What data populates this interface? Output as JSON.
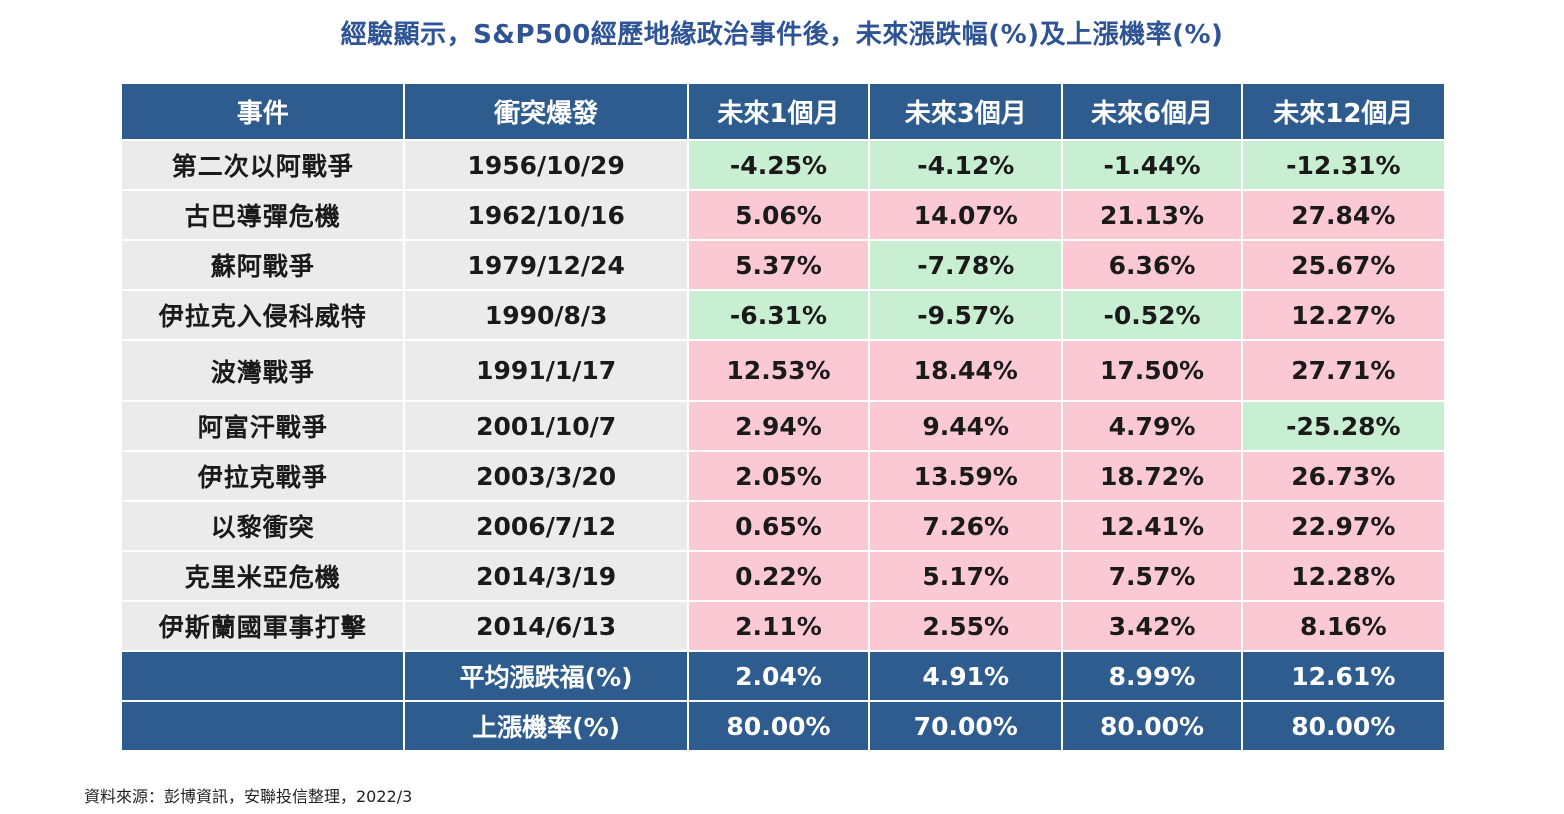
{
  "title": "經驗顯示，S&P500經歷地緣政治事件後，未來漲跌幅(%)及上漲機率(%)",
  "table": {
    "headers": [
      "事件",
      "衝突爆發",
      "未來1個月",
      "未來3個月",
      "未來6個月",
      "未來12個月"
    ],
    "rows": [
      {
        "event": "第二次以阿戰爭",
        "date": "1956/10/29",
        "values": [
          "-4.25%",
          "-4.12%",
          "-1.44%",
          "-12.31%"
        ]
      },
      {
        "event": "古巴導彈危機",
        "date": "1962/10/16",
        "values": [
          "5.06%",
          "14.07%",
          "21.13%",
          "27.84%"
        ]
      },
      {
        "event": "蘇阿戰爭",
        "date": "1979/12/24",
        "values": [
          "5.37%",
          "-7.78%",
          "6.36%",
          "25.67%"
        ]
      },
      {
        "event": "伊拉克入侵科威特",
        "date": "1990/8/3",
        "values": [
          "-6.31%",
          "-9.57%",
          "-0.52%",
          "12.27%"
        ]
      },
      {
        "event": "波灣戰爭",
        "date": "1991/1/17",
        "values": [
          "12.53%",
          "18.44%",
          "17.50%",
          "27.71%"
        ]
      },
      {
        "event": "阿富汗戰爭",
        "date": "2001/10/7",
        "values": [
          "2.94%",
          "9.44%",
          "4.79%",
          "-25.28%"
        ]
      },
      {
        "event": "伊拉克戰爭",
        "date": "2003/3/20",
        "values": [
          "2.05%",
          "13.59%",
          "18.72%",
          "26.73%"
        ]
      },
      {
        "event": "以黎衝突",
        "date": "2006/7/12",
        "values": [
          "0.65%",
          "7.26%",
          "12.41%",
          "22.97%"
        ]
      },
      {
        "event": "克里米亞危機",
        "date": "2014/3/19",
        "values": [
          "0.22%",
          "5.17%",
          "7.57%",
          "12.28%"
        ]
      },
      {
        "event": "伊斯蘭國軍事打擊",
        "date": "2014/6/13",
        "values": [
          "2.11%",
          "2.55%",
          "3.42%",
          "8.16%"
        ]
      }
    ],
    "summary": [
      {
        "label": "平均漲跌福(%)",
        "values": [
          "2.04%",
          "4.91%",
          "8.99%",
          "12.61%"
        ]
      },
      {
        "label": "上漲機率(%)",
        "values": [
          "80.00%",
          "70.00%",
          "80.00%",
          "80.00%"
        ]
      }
    ]
  },
  "colors": {
    "header_bg": "#2e5c8e",
    "positive_bg": "#fbc9d3",
    "negative_bg": "#c9efd3",
    "label_bg": "#ebebeb",
    "title_color": "#2f5496"
  },
  "source": "資料來源：彭博資訊，安聯投信整理，2022/3"
}
